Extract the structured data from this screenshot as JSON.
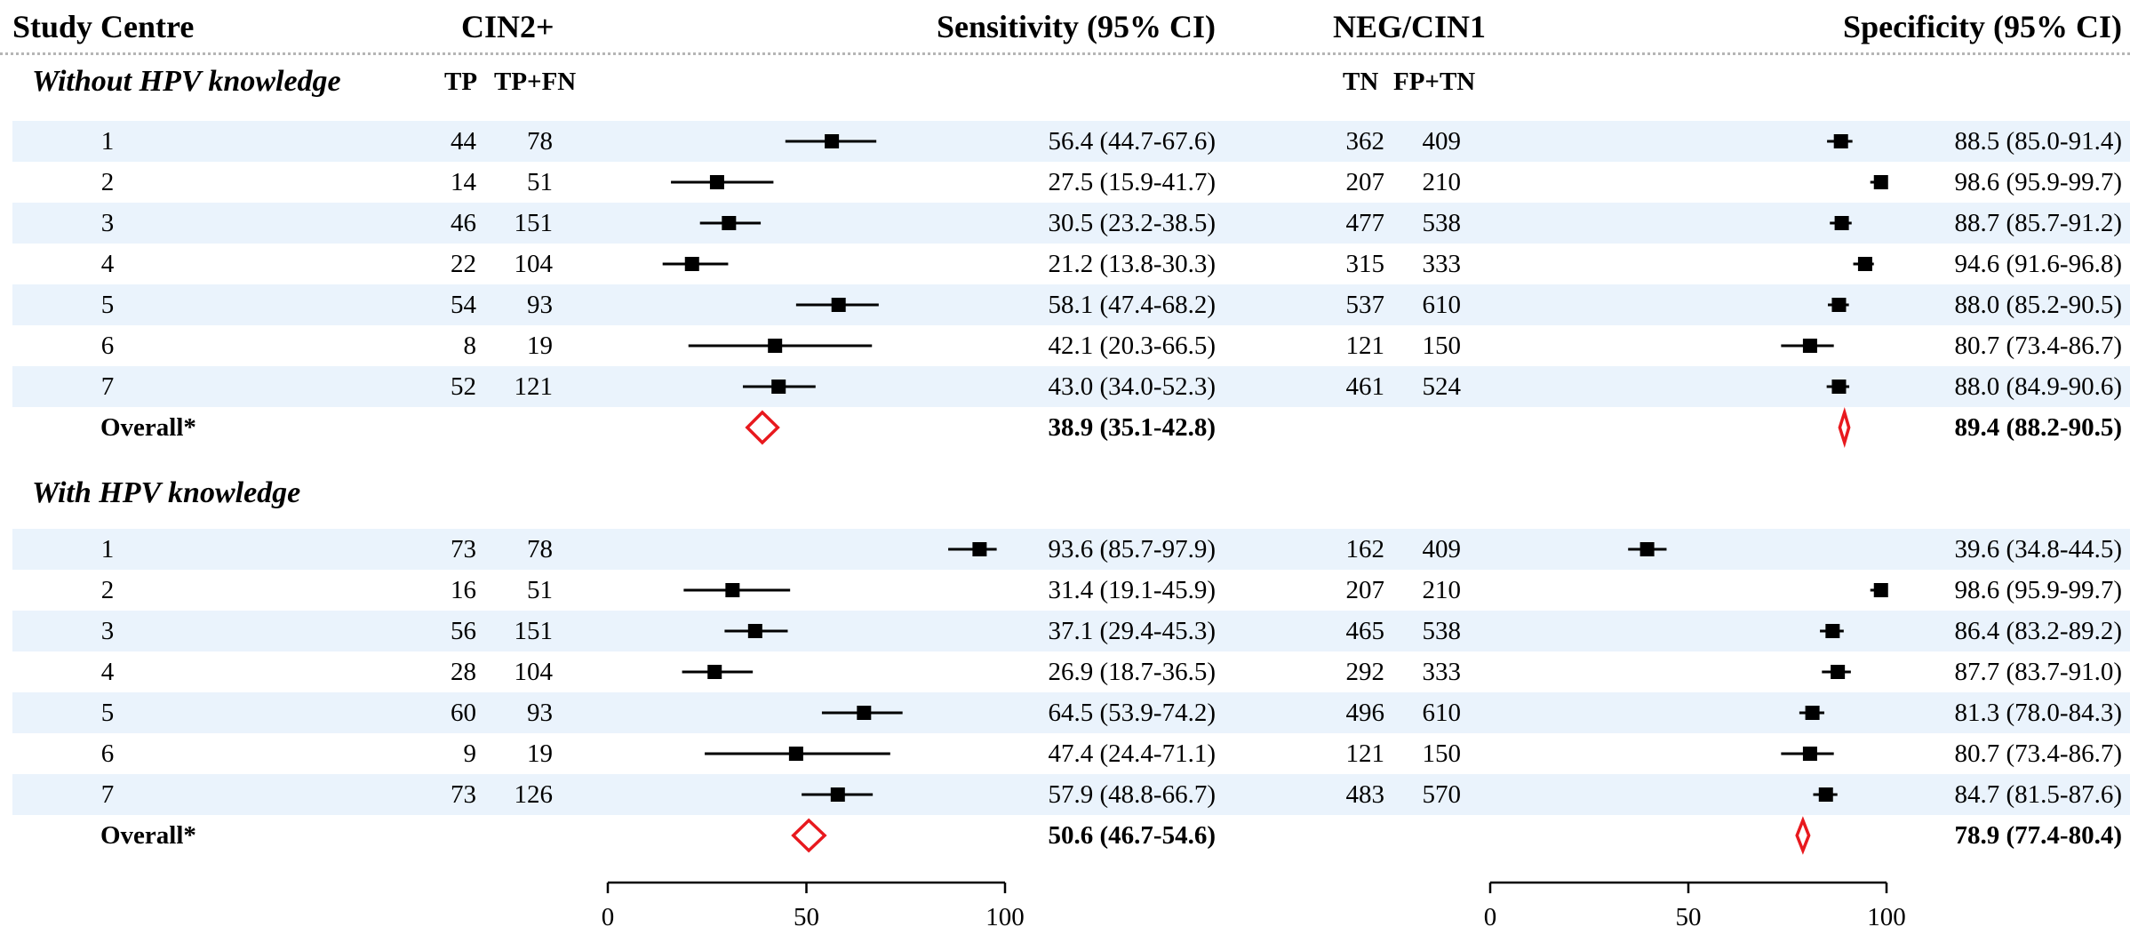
{
  "headers": {
    "study_centre": "Study Centre",
    "cin2": "CIN2+",
    "sensitivity": "Sensitivity (95% CI)",
    "neg": "NEG/CIN1",
    "specificity": "Specificity (95% CI)",
    "tp": "TP",
    "tpfn": "TP+FN",
    "tn": "TN",
    "fptn": "FP+TN"
  },
  "colors": {
    "band": "#eaf3fc",
    "overall_diamond": "#e8191e",
    "marker": "#000000"
  },
  "chart_data": {
    "type": "forest",
    "axes": {
      "sensitivity": {
        "ticks": [
          "0",
          "50",
          "100"
        ],
        "range": [
          0,
          100
        ]
      },
      "specificity": {
        "ticks": [
          "0",
          "50",
          "100"
        ],
        "range": [
          0,
          100
        ]
      }
    },
    "groups": [
      {
        "title": "Without HPV knowledge",
        "rows": [
          {
            "label": "1",
            "tp": "44",
            "tpfn": "78",
            "sens": 56.4,
            "sens_lo": 44.7,
            "sens_hi": 67.6,
            "sens_text": "56.4 (44.7-67.6)",
            "tn": "362",
            "fptn": "409",
            "spec": 88.5,
            "spec_lo": 85.0,
            "spec_hi": 91.4,
            "spec_text": "88.5 (85.0-91.4)"
          },
          {
            "label": "2",
            "tp": "14",
            "tpfn": "51",
            "sens": 27.5,
            "sens_lo": 15.9,
            "sens_hi": 41.7,
            "sens_text": "27.5 (15.9-41.7)",
            "tn": "207",
            "fptn": "210",
            "spec": 98.6,
            "spec_lo": 95.9,
            "spec_hi": 99.7,
            "spec_text": "98.6 (95.9-99.7)"
          },
          {
            "label": "3",
            "tp": "46",
            "tpfn": "151",
            "sens": 30.5,
            "sens_lo": 23.2,
            "sens_hi": 38.5,
            "sens_text": "30.5 (23.2-38.5)",
            "tn": "477",
            "fptn": "538",
            "spec": 88.7,
            "spec_lo": 85.7,
            "spec_hi": 91.2,
            "spec_text": "88.7 (85.7-91.2)"
          },
          {
            "label": "4",
            "tp": "22",
            "tpfn": "104",
            "sens": 21.2,
            "sens_lo": 13.8,
            "sens_hi": 30.3,
            "sens_text": "21.2 (13.8-30.3)",
            "tn": "315",
            "fptn": "333",
            "spec": 94.6,
            "spec_lo": 91.6,
            "spec_hi": 96.8,
            "spec_text": "94.6 (91.6-96.8)"
          },
          {
            "label": "5",
            "tp": "54",
            "tpfn": "93",
            "sens": 58.1,
            "sens_lo": 47.4,
            "sens_hi": 68.2,
            "sens_text": "58.1 (47.4-68.2)",
            "tn": "537",
            "fptn": "610",
            "spec": 88.0,
            "spec_lo": 85.2,
            "spec_hi": 90.5,
            "spec_text": "88.0 (85.2-90.5)"
          },
          {
            "label": "6",
            "tp": "8",
            "tpfn": "19",
            "sens": 42.1,
            "sens_lo": 20.3,
            "sens_hi": 66.5,
            "sens_text": "42.1 (20.3-66.5)",
            "tn": "121",
            "fptn": "150",
            "spec": 80.7,
            "spec_lo": 73.4,
            "spec_hi": 86.7,
            "spec_text": "80.7 (73.4-86.7)"
          },
          {
            "label": "7",
            "tp": "52",
            "tpfn": "121",
            "sens": 43.0,
            "sens_lo": 34.0,
            "sens_hi": 52.3,
            "sens_text": "43.0 (34.0-52.3)",
            "tn": "461",
            "fptn": "524",
            "spec": 88.0,
            "spec_lo": 84.9,
            "spec_hi": 90.6,
            "spec_text": "88.0 (84.9-90.6)"
          }
        ],
        "overall": {
          "label": "Overall*",
          "sens": 38.9,
          "sens_lo": 35.1,
          "sens_hi": 42.8,
          "sens_text": "38.9 (35.1-42.8)",
          "spec": 89.4,
          "spec_lo": 88.2,
          "spec_hi": 90.5,
          "spec_text": "89.4 (88.2-90.5)"
        }
      },
      {
        "title": "With HPV knowledge",
        "rows": [
          {
            "label": "1",
            "tp": "73",
            "tpfn": "78",
            "sens": 93.6,
            "sens_lo": 85.7,
            "sens_hi": 97.9,
            "sens_text": "93.6 (85.7-97.9)",
            "tn": "162",
            "fptn": "409",
            "spec": 39.6,
            "spec_lo": 34.8,
            "spec_hi": 44.5,
            "spec_text": "39.6 (34.8-44.5)"
          },
          {
            "label": "2",
            "tp": "16",
            "tpfn": "51",
            "sens": 31.4,
            "sens_lo": 19.1,
            "sens_hi": 45.9,
            "sens_text": "31.4 (19.1-45.9)",
            "tn": "207",
            "fptn": "210",
            "spec": 98.6,
            "spec_lo": 95.9,
            "spec_hi": 99.7,
            "spec_text": "98.6 (95.9-99.7)"
          },
          {
            "label": "3",
            "tp": "56",
            "tpfn": "151",
            "sens": 37.1,
            "sens_lo": 29.4,
            "sens_hi": 45.3,
            "sens_text": "37.1 (29.4-45.3)",
            "tn": "465",
            "fptn": "538",
            "spec": 86.4,
            "spec_lo": 83.2,
            "spec_hi": 89.2,
            "spec_text": "86.4 (83.2-89.2)"
          },
          {
            "label": "4",
            "tp": "28",
            "tpfn": "104",
            "sens": 26.9,
            "sens_lo": 18.7,
            "sens_hi": 36.5,
            "sens_text": "26.9 (18.7-36.5)",
            "tn": "292",
            "fptn": "333",
            "spec": 87.7,
            "spec_lo": 83.7,
            "spec_hi": 91.0,
            "spec_text": "87.7 (83.7-91.0)"
          },
          {
            "label": "5",
            "tp": "60",
            "tpfn": "93",
            "sens": 64.5,
            "sens_lo": 53.9,
            "sens_hi": 74.2,
            "sens_text": "64.5 (53.9-74.2)",
            "tn": "496",
            "fptn": "610",
            "spec": 81.3,
            "spec_lo": 78.0,
            "spec_hi": 84.3,
            "spec_text": "81.3 (78.0-84.3)"
          },
          {
            "label": "6",
            "tp": "9",
            "tpfn": "19",
            "sens": 47.4,
            "sens_lo": 24.4,
            "sens_hi": 71.1,
            "sens_text": "47.4 (24.4-71.1)",
            "tn": "121",
            "fptn": "150",
            "spec": 80.7,
            "spec_lo": 73.4,
            "spec_hi": 86.7,
            "spec_text": "80.7 (73.4-86.7)"
          },
          {
            "label": "7",
            "tp": "73",
            "tpfn": "126",
            "sens": 57.9,
            "sens_lo": 48.8,
            "sens_hi": 66.7,
            "sens_text": "57.9 (48.8-66.7)",
            "tn": "483",
            "fptn": "570",
            "spec": 84.7,
            "spec_lo": 81.5,
            "spec_hi": 87.6,
            "spec_text": "84.7 (81.5-87.6)"
          }
        ],
        "overall": {
          "label": "Overall*",
          "sens": 50.6,
          "sens_lo": 46.7,
          "sens_hi": 54.6,
          "sens_text": "50.6 (46.7-54.6)",
          "spec": 78.9,
          "spec_lo": 77.4,
          "spec_hi": 80.4,
          "spec_text": "78.9 (77.4-80.4)"
        }
      }
    ]
  }
}
